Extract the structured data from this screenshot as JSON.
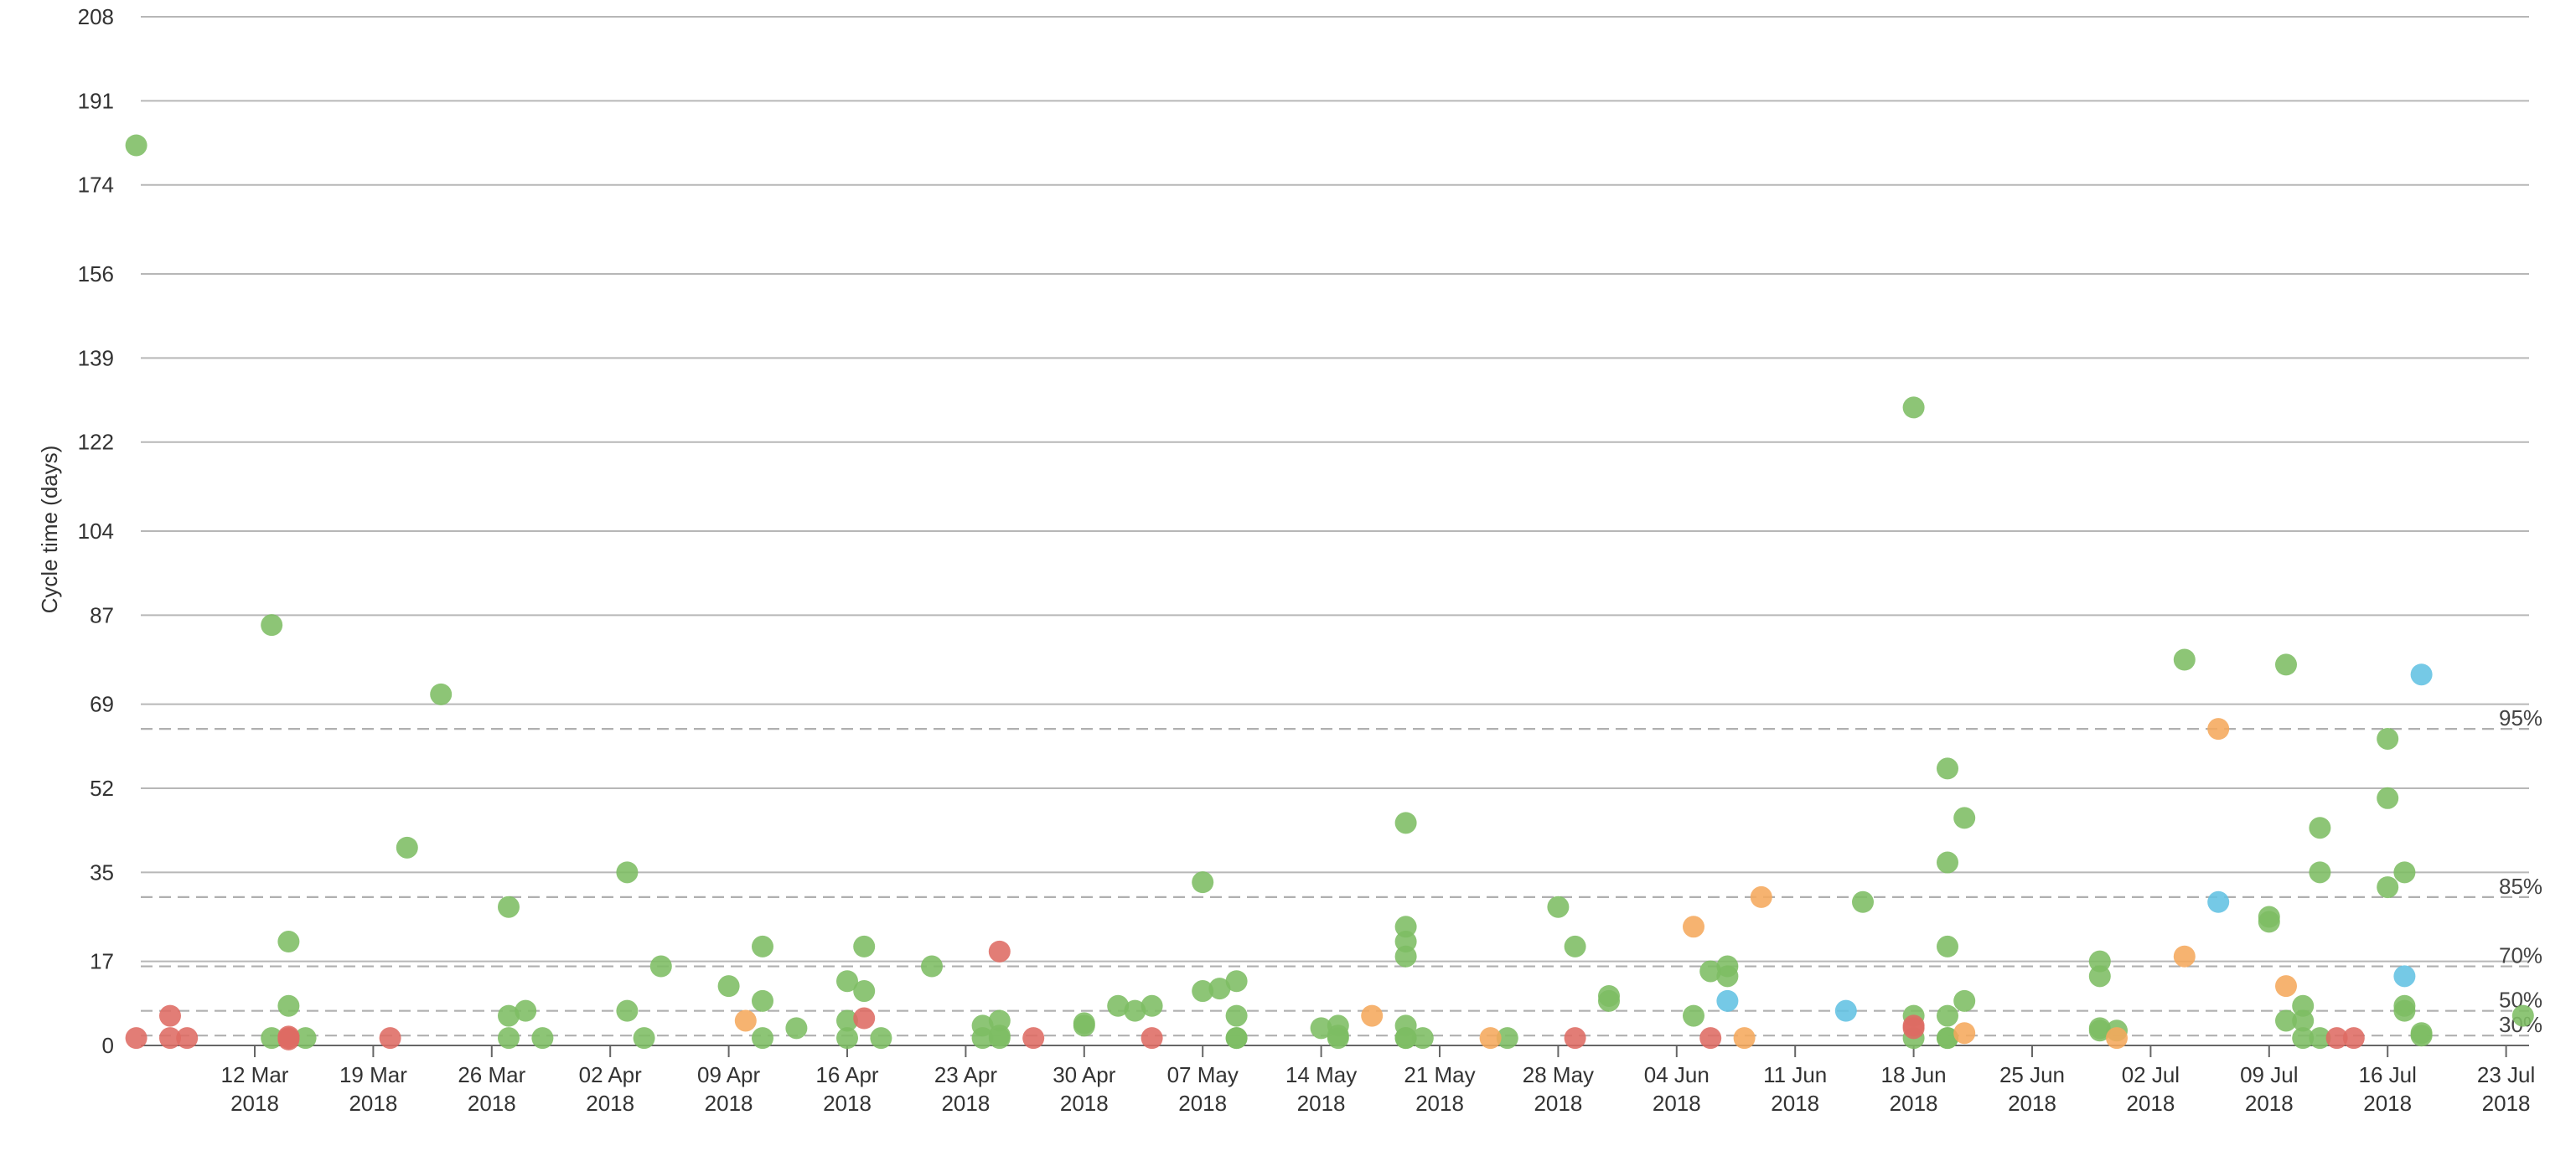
{
  "chart_data": {
    "type": "scatter",
    "title": "",
    "xlabel": "",
    "ylabel": "Cycle time (days)",
    "ylim": [
      0,
      208
    ],
    "xlim": [
      "2018-03-04",
      "2018-07-23"
    ],
    "grid": true,
    "y_ticks": [
      0,
      17,
      35,
      52,
      69,
      87,
      104,
      122,
      139,
      156,
      174,
      191,
      208
    ],
    "x_ticks": [
      {
        "date": "2018-03-12",
        "line1": "12 Mar",
        "line2": "2018"
      },
      {
        "date": "2018-03-19",
        "line1": "19 Mar",
        "line2": "2018"
      },
      {
        "date": "2018-03-26",
        "line1": "26 Mar",
        "line2": "2018"
      },
      {
        "date": "2018-04-02",
        "line1": "02 Apr",
        "line2": "2018"
      },
      {
        "date": "2018-04-09",
        "line1": "09 Apr",
        "line2": "2018"
      },
      {
        "date": "2018-04-16",
        "line1": "16 Apr",
        "line2": "2018"
      },
      {
        "date": "2018-04-23",
        "line1": "23 Apr",
        "line2": "2018"
      },
      {
        "date": "2018-04-30",
        "line1": "30 Apr",
        "line2": "2018"
      },
      {
        "date": "2018-05-07",
        "line1": "07 May",
        "line2": "2018"
      },
      {
        "date": "2018-05-14",
        "line1": "14 May",
        "line2": "2018"
      },
      {
        "date": "2018-05-21",
        "line1": "21 May",
        "line2": "2018"
      },
      {
        "date": "2018-05-28",
        "line1": "28 May",
        "line2": "2018"
      },
      {
        "date": "2018-06-04",
        "line1": "04 Jun",
        "line2": "2018"
      },
      {
        "date": "2018-06-11",
        "line1": "11 Jun",
        "line2": "2018"
      },
      {
        "date": "2018-06-18",
        "line1": "18 Jun",
        "line2": "2018"
      },
      {
        "date": "2018-06-25",
        "line1": "25 Jun",
        "line2": "2018"
      },
      {
        "date": "2018-07-02",
        "line1": "02 Jul",
        "line2": "2018"
      },
      {
        "date": "2018-07-09",
        "line1": "09 Jul",
        "line2": "2018"
      },
      {
        "date": "2018-07-16",
        "line1": "16 Jul",
        "line2": "2018"
      },
      {
        "date": "2018-07-23",
        "line1": "23 Jul",
        "line2": "2018"
      }
    ],
    "percentiles": [
      {
        "label": "95%",
        "value": 64
      },
      {
        "label": "85%",
        "value": 30
      },
      {
        "label": "70%",
        "value": 16
      },
      {
        "label": "50%",
        "value": 7
      },
      {
        "label": "30%",
        "value": 2
      }
    ],
    "colors": {
      "green": "#7dbd63",
      "red": "#de6b63",
      "orange": "#f5a85c",
      "blue": "#62c1e3"
    },
    "series": [
      {
        "color_key": "green",
        "points": [
          [
            "2018-03-05",
            182
          ],
          [
            "2018-03-13",
            85
          ],
          [
            "2018-03-14",
            21
          ],
          [
            "2018-03-14",
            8
          ],
          [
            "2018-03-13",
            1.5
          ],
          [
            "2018-03-15",
            1.5
          ],
          [
            "2018-03-21",
            40
          ],
          [
            "2018-03-23",
            71
          ],
          [
            "2018-03-27",
            28
          ],
          [
            "2018-03-27",
            6
          ],
          [
            "2018-03-27",
            1.5
          ],
          [
            "2018-03-28",
            7
          ],
          [
            "2018-03-29",
            1.5
          ],
          [
            "2018-04-03",
            35
          ],
          [
            "2018-04-03",
            7
          ],
          [
            "2018-04-04",
            1.5
          ],
          [
            "2018-04-05",
            16
          ],
          [
            "2018-04-09",
            12
          ],
          [
            "2018-04-11",
            20
          ],
          [
            "2018-04-11",
            1.5
          ],
          [
            "2018-04-11",
            9
          ],
          [
            "2018-04-13",
            3.5
          ],
          [
            "2018-04-16",
            13
          ],
          [
            "2018-04-16",
            5
          ],
          [
            "2018-04-16",
            1.5
          ],
          [
            "2018-04-17",
            20
          ],
          [
            "2018-04-17",
            11
          ],
          [
            "2018-04-18",
            1.5
          ],
          [
            "2018-04-21",
            16
          ],
          [
            "2018-04-24",
            4
          ],
          [
            "2018-04-24",
            1.5
          ],
          [
            "2018-04-25",
            5
          ],
          [
            "2018-04-25",
            1.5
          ],
          [
            "2018-04-25",
            2
          ],
          [
            "2018-04-30",
            4
          ],
          [
            "2018-04-30",
            4.5
          ],
          [
            "2018-05-02",
            8
          ],
          [
            "2018-05-03",
            7
          ],
          [
            "2018-05-04",
            8
          ],
          [
            "2018-05-07",
            33
          ],
          [
            "2018-05-07",
            11
          ],
          [
            "2018-05-08",
            11.5
          ],
          [
            "2018-05-09",
            13
          ],
          [
            "2018-05-09",
            6
          ],
          [
            "2018-05-09",
            1.5
          ],
          [
            "2018-05-09",
            1.5
          ],
          [
            "2018-05-14",
            3.5
          ],
          [
            "2018-05-15",
            4
          ],
          [
            "2018-05-15",
            1.5
          ],
          [
            "2018-05-15",
            2
          ],
          [
            "2018-05-19",
            45
          ],
          [
            "2018-05-19",
            24
          ],
          [
            "2018-05-19",
            21
          ],
          [
            "2018-05-19",
            18
          ],
          [
            "2018-05-19",
            4
          ],
          [
            "2018-05-19",
            1.5
          ],
          [
            "2018-05-19",
            1.5
          ],
          [
            "2018-05-20",
            1.5
          ],
          [
            "2018-05-25",
            1.5
          ],
          [
            "2018-05-28",
            28
          ],
          [
            "2018-05-29",
            20
          ],
          [
            "2018-05-31",
            10
          ],
          [
            "2018-05-31",
            9
          ],
          [
            "2018-06-05",
            6
          ],
          [
            "2018-06-06",
            15
          ],
          [
            "2018-06-07",
            16
          ],
          [
            "2018-06-07",
            14
          ],
          [
            "2018-06-15",
            29
          ],
          [
            "2018-06-18",
            129
          ],
          [
            "2018-06-18",
            6
          ],
          [
            "2018-06-18",
            1.5
          ],
          [
            "2018-06-20",
            56
          ],
          [
            "2018-06-20",
            37
          ],
          [
            "2018-06-20",
            20
          ],
          [
            "2018-06-20",
            6
          ],
          [
            "2018-06-20",
            1.5
          ],
          [
            "2018-06-20",
            1.5
          ],
          [
            "2018-06-21",
            46
          ],
          [
            "2018-06-21",
            9
          ],
          [
            "2018-06-29",
            17
          ],
          [
            "2018-06-29",
            14
          ],
          [
            "2018-06-29",
            3.5
          ],
          [
            "2018-06-29",
            3
          ],
          [
            "2018-06-30",
            3
          ],
          [
            "2018-07-04",
            78
          ],
          [
            "2018-07-09",
            25
          ],
          [
            "2018-07-09",
            26
          ],
          [
            "2018-07-10",
            77
          ],
          [
            "2018-07-10",
            5
          ],
          [
            "2018-07-11",
            8
          ],
          [
            "2018-07-11",
            5
          ],
          [
            "2018-07-11",
            1.5
          ],
          [
            "2018-07-12",
            44
          ],
          [
            "2018-07-12",
            35
          ],
          [
            "2018-07-12",
            1.5
          ],
          [
            "2018-07-16",
            62
          ],
          [
            "2018-07-16",
            50
          ],
          [
            "2018-07-16",
            32
          ],
          [
            "2018-07-17",
            35
          ],
          [
            "2018-07-17",
            8
          ],
          [
            "2018-07-17",
            7
          ],
          [
            "2018-07-18",
            2
          ],
          [
            "2018-07-18",
            2.5
          ],
          [
            "2018-07-24",
            6
          ]
        ]
      },
      {
        "color_key": "red",
        "points": [
          [
            "2018-03-05",
            1.5
          ],
          [
            "2018-03-07",
            6
          ],
          [
            "2018-03-07",
            1.5
          ],
          [
            "2018-03-08",
            1.5
          ],
          [
            "2018-03-14",
            1.5
          ],
          [
            "2018-03-14",
            1.8
          ],
          [
            "2018-03-14",
            1.2
          ],
          [
            "2018-03-20",
            1.5
          ],
          [
            "2018-04-17",
            5.5
          ],
          [
            "2018-04-25",
            19
          ],
          [
            "2018-04-27",
            1.5
          ],
          [
            "2018-05-04",
            1.5
          ],
          [
            "2018-05-29",
            1.5
          ],
          [
            "2018-06-06",
            1.5
          ],
          [
            "2018-06-18",
            4
          ],
          [
            "2018-06-18",
            3.5
          ],
          [
            "2018-07-13",
            1.5
          ],
          [
            "2018-07-14",
            1.5
          ]
        ]
      },
      {
        "color_key": "orange",
        "points": [
          [
            "2018-04-10",
            5
          ],
          [
            "2018-05-17",
            6
          ],
          [
            "2018-05-24",
            1.5
          ],
          [
            "2018-06-05",
            24
          ],
          [
            "2018-06-08",
            1.5
          ],
          [
            "2018-06-09",
            30
          ],
          [
            "2018-06-21",
            2.5
          ],
          [
            "2018-06-30",
            1.5
          ],
          [
            "2018-07-04",
            18
          ],
          [
            "2018-07-06",
            64
          ],
          [
            "2018-07-10",
            12
          ]
        ]
      },
      {
        "color_key": "blue",
        "points": [
          [
            "2018-06-07",
            9
          ],
          [
            "2018-06-14",
            7
          ],
          [
            "2018-07-06",
            29
          ],
          [
            "2018-07-17",
            14
          ],
          [
            "2018-07-18",
            75
          ]
        ]
      }
    ]
  }
}
